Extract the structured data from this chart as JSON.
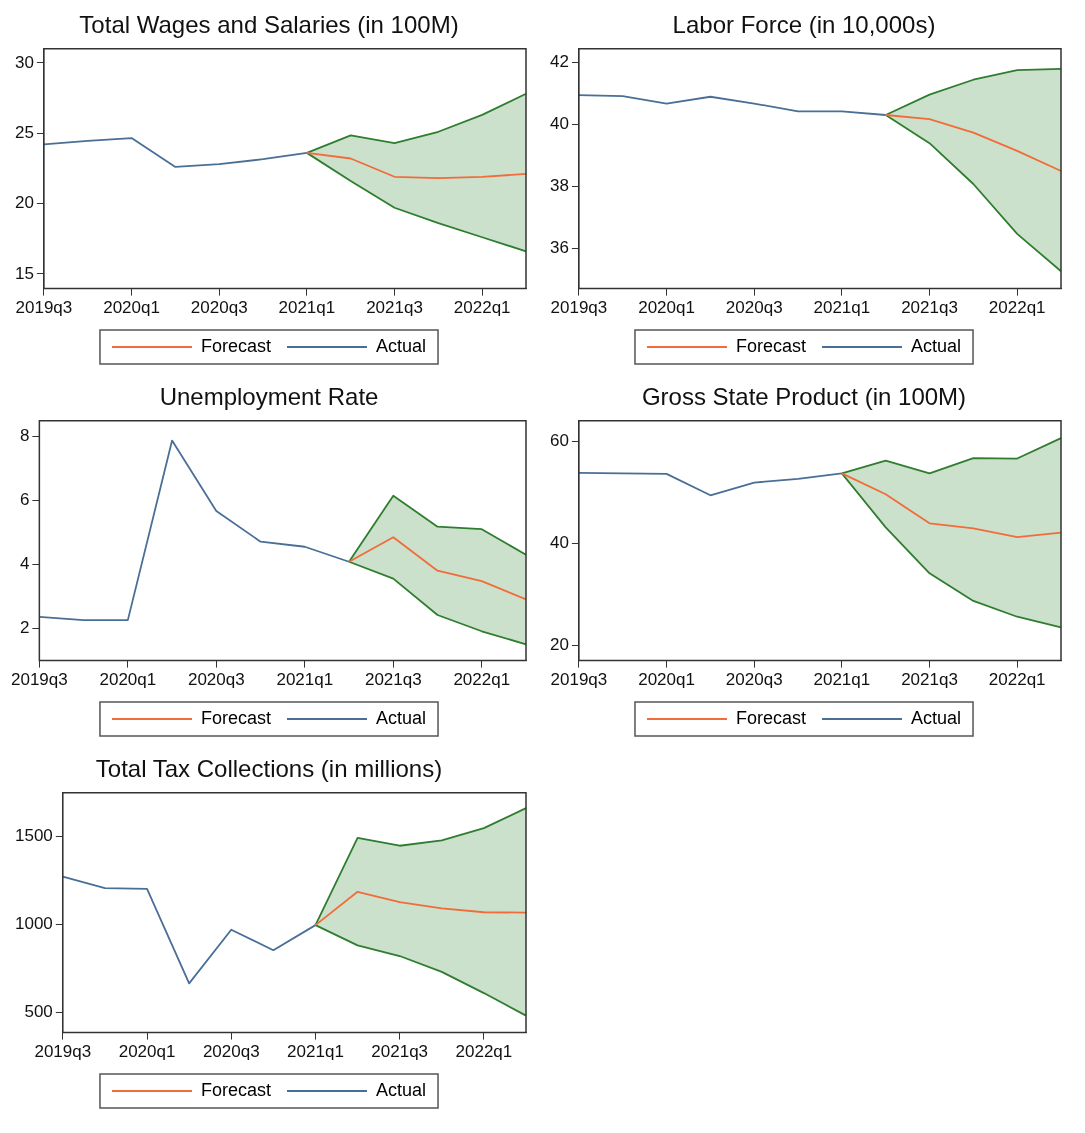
{
  "chart_data": [
    {
      "type": "line",
      "title": "Total Wages and Salaries (in 100M)",
      "categories": [
        "2019q3",
        null,
        "2020q1",
        null,
        "2020q3",
        null,
        "2021q1",
        null,
        "2021q3",
        null,
        "2022q1",
        null
      ],
      "ylim": [
        13.95,
        31
      ],
      "yticks": [
        15,
        20,
        25,
        30
      ],
      "legend": "bottom",
      "marker": "none",
      "series": [
        {
          "name": "Forecast",
          "color": "#f26b3a",
          "values": [
            null,
            null,
            null,
            null,
            null,
            null,
            23.6,
            23.2,
            21.9,
            21.8,
            21.9,
            22.1
          ],
          "lower": [
            null,
            null,
            null,
            null,
            null,
            null,
            23.6,
            21.6,
            19.7,
            18.6,
            17.6,
            16.6
          ],
          "upper": [
            null,
            null,
            null,
            null,
            null,
            null,
            23.6,
            24.85,
            24.3,
            25.1,
            26.3,
            27.8
          ]
        },
        {
          "name": "Actual",
          "color": "#4a6f96",
          "values": [
            24.2,
            24.45,
            24.65,
            22.6,
            22.8,
            23.15,
            23.6,
            null,
            null,
            null,
            null,
            null
          ]
        },
        {
          "color": "#2f7d2f",
          "values": [
            null,
            null,
            null,
            null,
            null,
            null,
            23.6,
            24.85,
            24.3,
            25.1,
            26.3,
            27.8
          ]
        },
        {
          "color": "#2f7d2f",
          "values": [
            null,
            null,
            null,
            null,
            null,
            null,
            23.6,
            21.6,
            19.7,
            18.6,
            17.6,
            16.6
          ]
        }
      ]
    },
    {
      "type": "line",
      "title": "Labor Force (in 10,000s)",
      "categories": [
        "2019q3",
        null,
        "2020q1",
        null,
        "2020q3",
        null,
        "2021q1",
        null,
        "2021q3",
        null,
        "2022q1",
        null
      ],
      "ylim": [
        34.7,
        42.45
      ],
      "yticks": [
        36,
        38,
        40,
        42
      ],
      "legend": "bottom",
      "marker": "none",
      "series": [
        {
          "name": "Forecast",
          "color": "#f26b3a",
          "values": [
            null,
            null,
            null,
            null,
            null,
            null,
            null,
            40.31,
            40.18,
            39.74,
            39.15,
            38.5
          ],
          "lower": [
            null,
            null,
            null,
            null,
            null,
            null,
            null,
            40.31,
            39.4,
            38.08,
            36.47,
            35.26
          ],
          "upper": [
            null,
            null,
            null,
            null,
            null,
            null,
            null,
            40.31,
            40.97,
            41.45,
            41.76,
            41.8
          ]
        },
        {
          "name": "Actual",
          "color": "#4a6f96",
          "values": [
            40.95,
            40.92,
            40.68,
            40.9,
            40.68,
            40.43,
            40.43,
            40.31,
            null,
            null,
            null,
            null
          ]
        },
        {
          "color": "#2f7d2f",
          "values": [
            null,
            null,
            null,
            null,
            null,
            null,
            null,
            40.31,
            40.97,
            41.45,
            41.76,
            41.8
          ]
        },
        {
          "color": "#2f7d2f",
          "values": [
            null,
            null,
            null,
            null,
            null,
            null,
            null,
            40.31,
            39.4,
            38.08,
            36.47,
            35.26
          ]
        }
      ]
    },
    {
      "type": "line",
      "title": "Unemployment Rate",
      "categories": [
        "2019q3",
        null,
        "2020q1",
        null,
        "2020q3",
        null,
        "2021q1",
        null,
        "2021q3",
        null,
        "2022q1",
        null
      ],
      "ylim": [
        0.98,
        8.5
      ],
      "yticks": [
        2,
        4,
        6,
        8
      ],
      "legend": "bottom",
      "marker": "none",
      "series": [
        {
          "name": "Forecast",
          "color": "#f26b3a",
          "values": [
            null,
            null,
            null,
            null,
            null,
            null,
            null,
            4.08,
            4.85,
            3.8,
            3.47,
            2.9
          ],
          "lower": [
            null,
            null,
            null,
            null,
            null,
            null,
            null,
            4.08,
            3.55,
            2.41,
            1.9,
            1.49
          ],
          "upper": [
            null,
            null,
            null,
            null,
            null,
            null,
            null,
            4.08,
            6.15,
            5.18,
            5.1,
            4.3
          ]
        },
        {
          "name": "Actual",
          "color": "#4a6f96",
          "values": [
            2.35,
            2.25,
            2.25,
            7.88,
            5.67,
            4.71,
            4.55,
            4.08,
            null,
            null,
            null,
            null
          ]
        },
        {
          "color": "#2f7d2f",
          "values": [
            null,
            null,
            null,
            null,
            null,
            null,
            null,
            4.08,
            6.15,
            5.18,
            5.1,
            4.3
          ]
        },
        {
          "color": "#2f7d2f",
          "values": [
            null,
            null,
            null,
            null,
            null,
            null,
            null,
            4.08,
            3.55,
            2.41,
            1.9,
            1.49
          ]
        }
      ]
    },
    {
      "type": "line",
      "title": "Gross State Product (in 100M)",
      "categories": [
        "2019q3",
        null,
        "2020q1",
        null,
        "2020q3",
        null,
        "2021q1",
        null,
        "2021q3",
        null,
        "2022q1",
        null
      ],
      "ylim": [
        17.1,
        64.1
      ],
      "yticks": [
        20,
        40,
        60
      ],
      "legend": "bottom",
      "marker": "none",
      "series": [
        {
          "name": "Forecast",
          "color": "#f26b3a",
          "values": [
            null,
            null,
            null,
            null,
            null,
            null,
            53.8,
            49.7,
            44,
            43,
            41.3,
            42.2
          ],
          "lower": [
            null,
            null,
            null,
            null,
            null,
            null,
            53.8,
            43.2,
            34.2,
            28.8,
            25.7,
            23.6
          ],
          "upper": [
            null,
            null,
            null,
            null,
            null,
            null,
            53.8,
            56.3,
            53.8,
            56.8,
            56.7,
            60.7
          ]
        },
        {
          "name": "Actual",
          "color": "#4a6f96",
          "values": [
            53.9,
            53.8,
            53.7,
            49.5,
            52,
            52.7,
            53.8,
            null,
            null,
            null,
            null,
            null
          ]
        },
        {
          "color": "#2f7d2f",
          "values": [
            null,
            null,
            null,
            null,
            null,
            null,
            53.8,
            56.3,
            53.8,
            56.8,
            56.7,
            60.7
          ]
        },
        {
          "color": "#2f7d2f",
          "values": [
            null,
            null,
            null,
            null,
            null,
            null,
            53.8,
            43.2,
            34.2,
            28.8,
            25.7,
            23.6
          ]
        }
      ]
    },
    {
      "type": "line",
      "title": "Total Tax Collections (in millions)",
      "categories": [
        "2019q3",
        null,
        "2020q1",
        null,
        "2020q3",
        null,
        "2021q1",
        null,
        "2021q3",
        null,
        "2022q1",
        null
      ],
      "ylim": [
        386,
        1745
      ],
      "yticks": [
        500,
        1000,
        1500
      ],
      "legend": "bottom",
      "marker": "none",
      "series": [
        {
          "name": "Forecast",
          "color": "#f26b3a",
          "values": [
            null,
            null,
            null,
            null,
            null,
            null,
            995,
            1184,
            1125,
            1090,
            1068,
            1066
          ],
          "lower": [
            null,
            null,
            null,
            null,
            null,
            null,
            995,
            880,
            820,
            730,
            610,
            482
          ],
          "upper": [
            null,
            null,
            null,
            null,
            null,
            null,
            995,
            1489,
            1445,
            1475,
            1545,
            1658
          ]
        },
        {
          "name": "Actual",
          "color": "#4a6f96",
          "values": [
            1270,
            1205,
            1200,
            665,
            969,
            853,
            995,
            null,
            null,
            null,
            null,
            null
          ]
        },
        {
          "color": "#2f7d2f",
          "values": [
            null,
            null,
            null,
            null,
            null,
            null,
            995,
            1489,
            1445,
            1475,
            1545,
            1658
          ]
        },
        {
          "color": "#2f7d2f",
          "values": [
            null,
            null,
            null,
            null,
            null,
            null,
            995,
            880,
            820,
            730,
            610,
            482
          ]
        }
      ]
    }
  ]
}
